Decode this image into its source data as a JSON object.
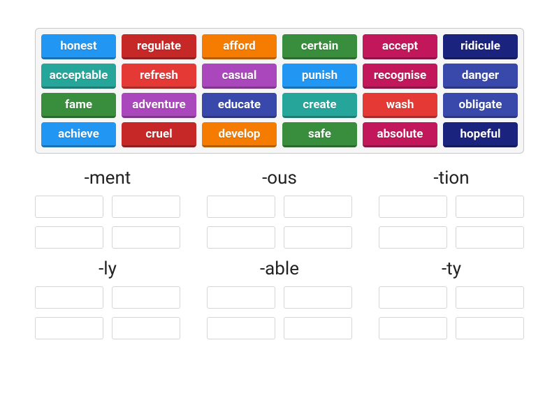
{
  "colors": {
    "blue": "#2196f3",
    "red": "#e53935",
    "orange": "#f57c00",
    "green": "#388e3c",
    "pink": "#c2185b",
    "navy": "#1a237e",
    "teal": "#26a69a",
    "purple": "#ab47bc",
    "indigo": "#3949ab",
    "crimson": "#c62828"
  },
  "word_bank": {
    "rows": [
      [
        {
          "label": "honest",
          "color": "blue"
        },
        {
          "label": "regulate",
          "color": "crimson"
        },
        {
          "label": "afford",
          "color": "orange"
        },
        {
          "label": "certain",
          "color": "green"
        },
        {
          "label": "accept",
          "color": "pink"
        },
        {
          "label": "ridicule",
          "color": "navy"
        }
      ],
      [
        {
          "label": "acceptable",
          "color": "teal"
        },
        {
          "label": "refresh",
          "color": "red"
        },
        {
          "label": "casual",
          "color": "purple"
        },
        {
          "label": "punish",
          "color": "blue"
        },
        {
          "label": "recognise",
          "color": "pink"
        },
        {
          "label": "danger",
          "color": "indigo"
        }
      ],
      [
        {
          "label": "fame",
          "color": "green"
        },
        {
          "label": "adventure",
          "color": "purple"
        },
        {
          "label": "educate",
          "color": "indigo"
        },
        {
          "label": "create",
          "color": "teal"
        },
        {
          "label": "wash",
          "color": "red"
        },
        {
          "label": "obligate",
          "color": "indigo"
        }
      ],
      [
        {
          "label": "achieve",
          "color": "blue"
        },
        {
          "label": "cruel",
          "color": "crimson"
        },
        {
          "label": "develop",
          "color": "orange"
        },
        {
          "label": "safe",
          "color": "green"
        },
        {
          "label": "absolute",
          "color": "pink"
        },
        {
          "label": "hopeful",
          "color": "navy"
        }
      ]
    ]
  },
  "categories": [
    {
      "title": "-ment",
      "slots": 4
    },
    {
      "title": "-ous",
      "slots": 4
    },
    {
      "title": "-tion",
      "slots": 4
    },
    {
      "title": "-ly",
      "slots": 4
    },
    {
      "title": "-able",
      "slots": 4
    },
    {
      "title": "-ty",
      "slots": 4
    }
  ]
}
